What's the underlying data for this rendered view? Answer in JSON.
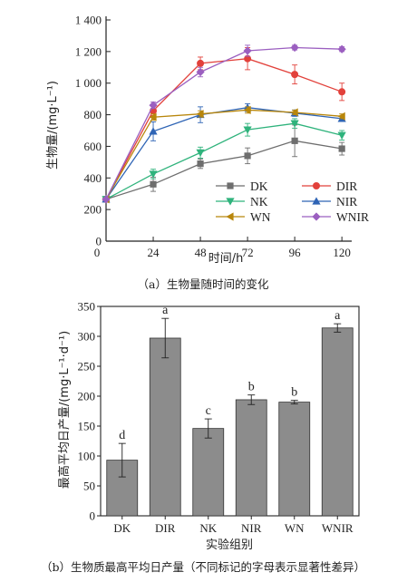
{
  "chart_data": [
    {
      "type": "line",
      "title": "",
      "caption": "（a）生物量随时间的变化",
      "xlabel": "时间/h",
      "ylabel": "生物量/(mg·L⁻¹)",
      "x": [
        0,
        24,
        48,
        72,
        96,
        120
      ],
      "xticks": [
        "0",
        "24",
        "48",
        "72",
        "96",
        "120"
      ],
      "yticks": [
        "0",
        "200",
        "400",
        "600",
        "800",
        "1 000",
        "1 200",
        "1 400"
      ],
      "ylim": [
        0,
        1400
      ],
      "xlim": [
        0,
        125
      ],
      "legend_position": "bottom-right",
      "series": [
        {
          "name": "DK",
          "color": "#6e6e6e",
          "marker": "square",
          "values": [
            265,
            360,
            490,
            540,
            635,
            585
          ],
          "errors": [
            10,
            45,
            30,
            50,
            100,
            40
          ]
        },
        {
          "name": "DIR",
          "color": "#e2413b",
          "marker": "circle",
          "values": [
            265,
            825,
            1125,
            1155,
            1055,
            945
          ],
          "errors": [
            10,
            30,
            40,
            70,
            60,
            55
          ]
        },
        {
          "name": "NK",
          "color": "#2fb37c",
          "marker": "triangle-down",
          "values": [
            265,
            425,
            560,
            705,
            745,
            670
          ],
          "errors": [
            10,
            30,
            35,
            40,
            30,
            30
          ]
        },
        {
          "name": "NIR",
          "color": "#2e64b5",
          "marker": "triangle-up",
          "values": [
            265,
            695,
            800,
            845,
            810,
            775
          ],
          "errors": [
            10,
            60,
            50,
            25,
            20,
            15
          ]
        },
        {
          "name": "WN",
          "color": "#b8860b",
          "marker": "triangle-left",
          "values": [
            265,
            785,
            805,
            830,
            815,
            790
          ],
          "errors": [
            10,
            20,
            20,
            20,
            15,
            15
          ]
        },
        {
          "name": "WNIR",
          "color": "#9b5fc0",
          "marker": "diamond",
          "values": [
            265,
            860,
            1070,
            1205,
            1225,
            1215
          ],
          "errors": [
            10,
            20,
            30,
            35,
            15,
            15
          ]
        }
      ]
    },
    {
      "type": "bar",
      "title": "",
      "caption": "（b）生物质最高平均日产量（不同标记的字母表示显著性差异）",
      "xlabel": "实验组别",
      "ylabel": "最高平均日产量/(mg·L⁻¹·d⁻¹)",
      "categories": [
        "DK",
        "DIR",
        "NK",
        "NIR",
        "WN",
        "WNIR"
      ],
      "values": [
        93,
        297,
        146,
        194,
        190,
        314
      ],
      "errors": [
        28,
        33,
        16,
        8,
        3,
        7
      ],
      "significance": [
        "d",
        "a",
        "c",
        "b",
        "b",
        "a"
      ],
      "yticks": [
        "0",
        "50",
        "100",
        "150",
        "200",
        "250",
        "300",
        "350"
      ],
      "ylim": [
        0,
        350
      ],
      "bar_color": "#8c8c8c"
    }
  ]
}
